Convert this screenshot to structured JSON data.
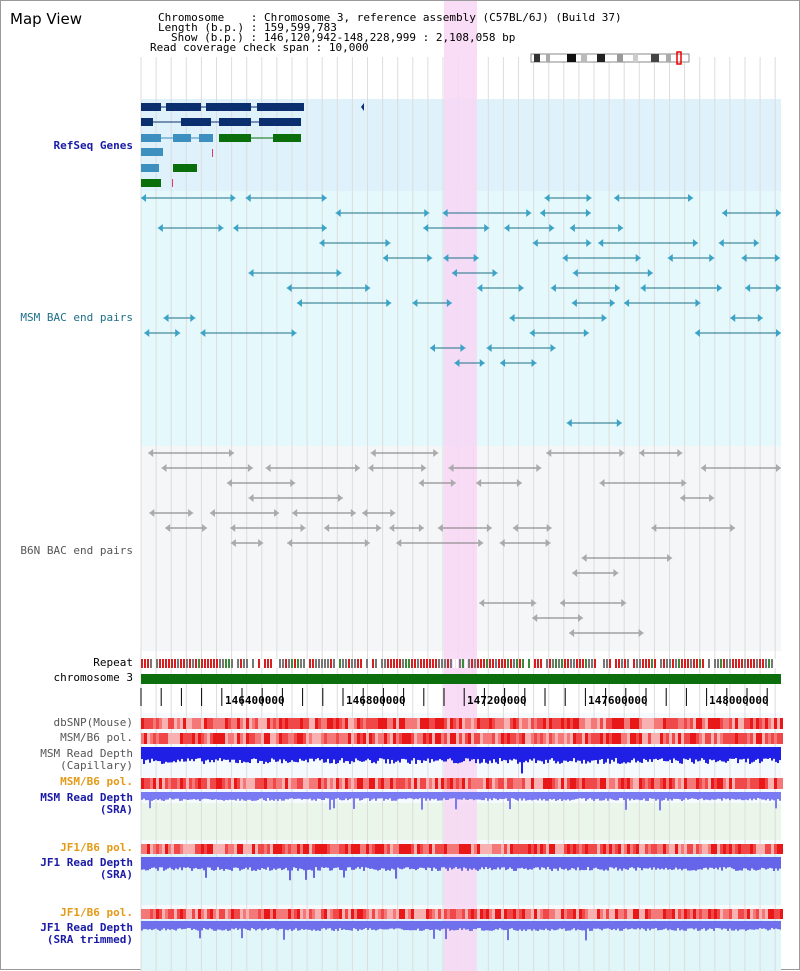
{
  "title": "Map View",
  "info": {
    "chromosome_key": "Chromosome",
    "chromosome_val": "Chromosome 3, reference assembly (C57BL/6J) (Build 37)",
    "length_key": "Length (b.p.)",
    "length_val": "159,599,783",
    "show_key": "Show (b.p.)",
    "show_val": "146,120,942-148,228,999 : 2,108,058 bp",
    "coverage_key": "Read coverage check span",
    "coverage_val": "10,000"
  },
  "tracks": {
    "refseq": "RefSeq Genes",
    "msm_bac": "MSM BAC end pairs",
    "b6n_bac": "B6N BAC end pairs",
    "repeat": "Repeat",
    "chromosome": "chromosome 3",
    "dbsnp": "dbSNP(Mouse)",
    "msm_pol1": "MSM/B6 pol.",
    "msm_depth_cap": "MSM Read Depth",
    "msm_depth_cap2": "(Capillary)",
    "msm_pol2": "MSM/B6 pol.",
    "msm_depth_sra": "MSM Read Depth",
    "msm_depth_sra2": "(SRA)",
    "jf1_pol1": "JF1/B6 pol.",
    "jf1_depth": "JF1 Read Depth",
    "jf1_depth2": "(SRA)",
    "jf1_pol2": "JF1/B6 pol.",
    "jf1_depth_trim": "JF1 Read Depth",
    "jf1_depth_trim2": "(SRA trimmed)"
  },
  "axis_ticks": [
    "146400000",
    "146800000",
    "147200000",
    "147600000",
    "148000000"
  ],
  "colors": {
    "refseq_bg": "#dff1fb",
    "msm_bg": "#e5f8fb",
    "b6n_bg": "#f4f6f8",
    "highlight": "#f8d7f4",
    "chromosome": "#0c6e0c",
    "depth": "#1f1fe6",
    "light_depth": "#7a7af2",
    "pol": "#f06060"
  }
}
